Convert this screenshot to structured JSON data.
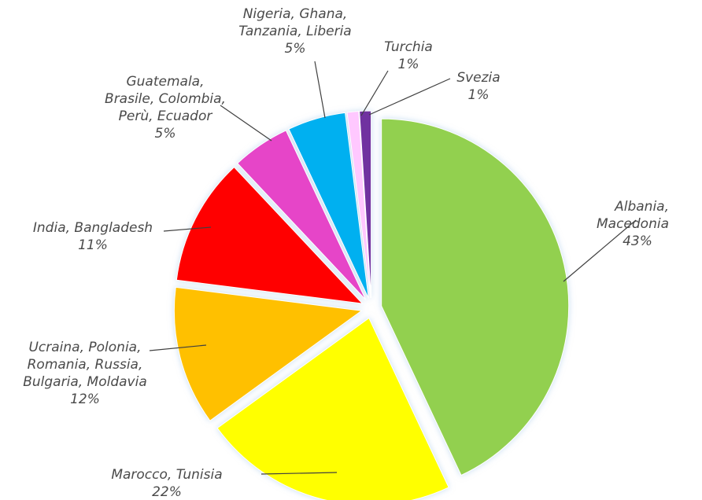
{
  "chart_data": {
    "type": "pie",
    "title": "",
    "slices": [
      {
        "label": "Albania, Macedonia",
        "lines": [
          "Albania,",
          "Macedonia"
        ],
        "pct_label": "43%",
        "value": 43,
        "color": "#92d050"
      },
      {
        "label": "Marocco, Tunisia",
        "lines": [
          "Marocco, Tunisia"
        ],
        "pct_label": "22%",
        "value": 22,
        "color": "#ffff00"
      },
      {
        "label": "Ucraina, Polonia, Romania, Russia, Bulgaria, Moldavia",
        "lines": [
          "Ucraina, Polonia,",
          "Romania, Russia,",
          "Bulgaria, Moldavia"
        ],
        "pct_label": "12%",
        "value": 12,
        "color": "#ffc000"
      },
      {
        "label": "India, Bangladesh",
        "lines": [
          "India, Bangladesh"
        ],
        "pct_label": "11%",
        "value": 11,
        "color": "#ff0000"
      },
      {
        "label": "Guatemala, Brasile, Colombia, Perù, Ecuador",
        "lines": [
          "Guatemala,",
          "Brasile, Colombia,",
          "Perù, Ecuador"
        ],
        "pct_label": "5%",
        "value": 5,
        "color": "#e645c8"
      },
      {
        "label": "Nigeria, Ghana, Tanzania, Liberia",
        "lines": [
          "Nigeria, Ghana,",
          "Tanzania, Liberia"
        ],
        "pct_label": "5%",
        "value": 5,
        "color": "#00b0f0"
      },
      {
        "label": "Turchia",
        "lines": [
          "Turchia"
        ],
        "pct_label": "1%",
        "value": 1,
        "color": "#ffc8ff"
      },
      {
        "label": "Svezia",
        "lines": [
          "Svezia"
        ],
        "pct_label": "1%",
        "value": 1,
        "color": "#7030a0"
      }
    ],
    "exploded": true,
    "legend": "none",
    "label_style": "outside with leader lines"
  }
}
